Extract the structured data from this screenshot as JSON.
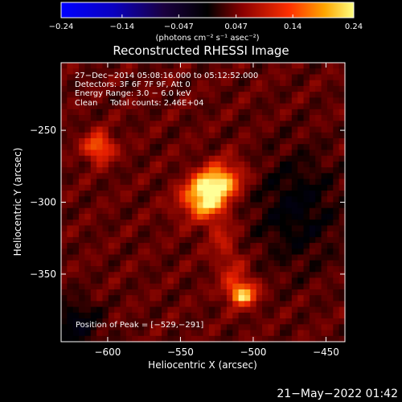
{
  "chart_data": {
    "type": "heatmap",
    "title": "Reconstructed RHESSI Image",
    "xlabel": "Heliocentric X (arcsec)",
    "ylabel": "Heliocentric Y (arcsec)",
    "xlim": [
      -632,
      -437
    ],
    "ylim": [
      -397,
      -203
    ],
    "x_ticks": [
      -600,
      -550,
      -500,
      -450
    ],
    "y_ticks": [
      -250,
      -300,
      -350
    ],
    "x_tick_labels": [
      "−600",
      "−550",
      "−500",
      "−450"
    ],
    "y_tick_labels": [
      "−250",
      "−300",
      "−350"
    ],
    "colorbar": {
      "range": [
        -0.24,
        0.24
      ],
      "ticks": [
        -0.24,
        -0.14,
        -0.047,
        0.047,
        0.14,
        0.24
      ],
      "tick_labels": [
        "−0.24",
        "−0.14",
        "−0.047",
        "0.047",
        "0.14",
        "0.24"
      ],
      "label": "(photons cm⁻² s⁻¹ asec⁻²)"
    },
    "annotations": [
      "27−Dec−2014 05:08:16.000 to 05:12:52.000",
      "Detectors: 3F 6F 7F 9F, Att 0",
      "Energy Range: 3.0 − 6.0 keV",
      "Clean     Total counts: 2.46E+04"
    ],
    "peak_label": "Position of Peak = [−529,−291]",
    "peak": [
      -529,
      -291
    ],
    "sources": [
      {
        "x": -529,
        "y": -291,
        "amplitude": 0.24
      },
      {
        "x": -606,
        "y": -262,
        "amplitude": 0.13
      },
      {
        "x": -507,
        "y": -364,
        "amplitude": 0.12
      }
    ]
  },
  "timestamp": "21−May−2022 01:42"
}
